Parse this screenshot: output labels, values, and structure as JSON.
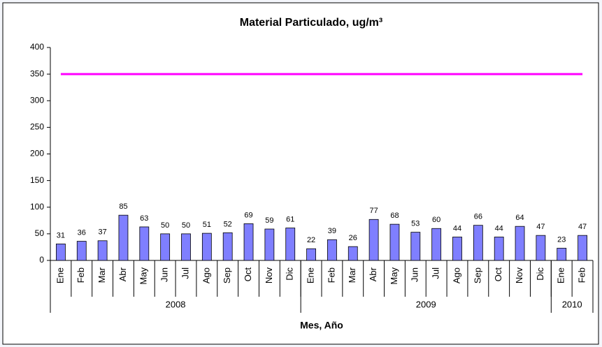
{
  "chart_data": {
    "type": "bar",
    "title": "Material Particulado, ug/m³",
    "x_label": "Mes, Año",
    "groups": [
      {
        "label": "2008",
        "categories": [
          "Ene",
          "Feb",
          "Mar",
          "Abr",
          "May",
          "Jun",
          "Jul",
          "Ago",
          "Sep",
          "Oct",
          "Nov",
          "Dic"
        ]
      },
      {
        "label": "2009",
        "categories": [
          "Ene",
          "Feb",
          "Mar",
          "Abr",
          "May",
          "Jun",
          "Jul",
          "Ago",
          "Sep",
          "Oct",
          "Nov",
          "Dic"
        ]
      },
      {
        "label": "2010",
        "categories": [
          "Ene",
          "Feb"
        ]
      }
    ],
    "values": [
      31,
      36,
      37,
      85,
      63,
      50,
      50,
      51,
      52,
      69,
      59,
      61,
      22,
      39,
      26,
      77,
      68,
      53,
      60,
      44,
      66,
      44,
      64,
      47,
      23,
      47
    ],
    "color": "#7f7fff",
    "reference_line": {
      "value": 350,
      "color": "#ff00ff"
    },
    "ylim": [
      0,
      400
    ],
    "yticks": [
      0,
      50,
      100,
      150,
      200,
      250,
      300,
      350,
      400
    ],
    "grid": false
  }
}
